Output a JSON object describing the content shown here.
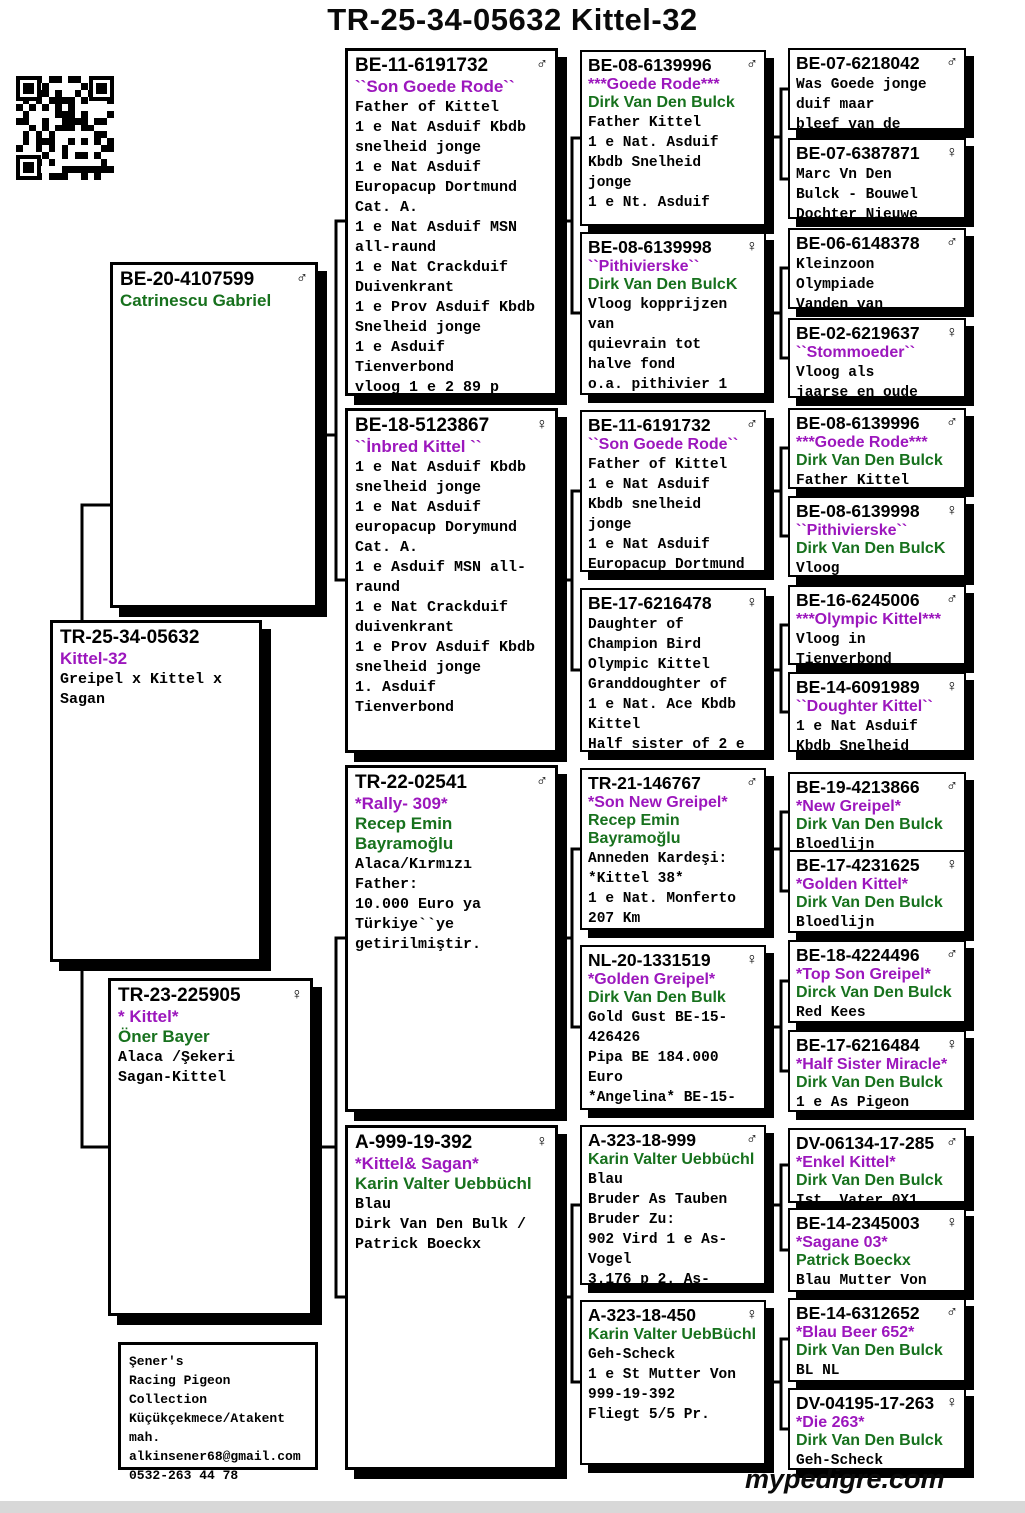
{
  "title": "TR-25-34-05632  Kittel-32",
  "footer": "mypedigre.com",
  "colors": {
    "nickname": "#9c17bd",
    "fancier": "#17711d",
    "ink": "#000000"
  },
  "gen1": {
    "sire": {
      "id": "BE-20-4107599",
      "sex": "♂",
      "fancier": "Catrinescu Gabriel"
    },
    "subject": {
      "id": "TR-25-34-05632",
      "nickname": "Kittel-32",
      "lines": "Greipel x Kittel x\nSagan"
    },
    "dam": {
      "id": "TR-23-225905",
      "sex": "♀",
      "nickname": "* Kittel*",
      "fancier": "Öner Bayer",
      "lines": "Alaca /Şekeri\nSagan-Kittel"
    }
  },
  "owner_card": {
    "lines": "Şener's\nRacing Pigeon\nCollection\nKüçükçekmece/Atakent mah.\nalkinsener68@gmail.com\n0532-263 44 78"
  },
  "gen2": [
    {
      "id": "BE-11-6191732",
      "sex": "♂",
      "nickname": "``Son Goede Rode``",
      "lines": "Father of Kittel\n1 e Nat Asduif Kbdb\nsnelheid jonge\n1 e Nat Asduif\nEuropacup Dortmund\nCat. A.\n1 e Nat Asduif MSN\nall-raund\n1 e Nat  Crackduif\nDuivenkrant\n1 e Prov Asduif Kbdb\nSnelheid jonge\n1 e Asduif\nTienverbond\nvloog 1 e  2 89 p"
    },
    {
      "id": "BE-18-5123867",
      "sex": "♀",
      "nickname": "``İnbred Kittel ``",
      "lines": "1 e Nat Asduif Kbdb\nsnelheid jonge\n1 e Nat Asduif\neuropacup Dorymund\nCat. A.\n1 e Asduif MSN all-\nraund\n1 e Nat  Crackduif\nduivenkrant\n1 e Prov Asduif Kbdb\nsnelheid jonge\n1. Asduif\nTienverbond"
    },
    {
      "id": "TR-22-02541",
      "sex": "♂",
      "nickname": "*Rally- 309*",
      "fancier": "Recep Emin Bayramoğlu",
      "lines": "Alaca/Kırmızı\nFather:\n10.000 Euro ya\nTürkiye``ye\ngetirilmiştir."
    },
    {
      "id": "A-999-19-392",
      "sex": "♀",
      "nickname": "*Kittel& Sagan*",
      "fancier": "Karin Valter Uebbüchl",
      "lines": "Blau\nDirk Van Den Bulk /\nPatrick Boeckx"
    }
  ],
  "gen3": [
    {
      "id": "BE-08-6139996",
      "sex": "♂",
      "nickname": "***Goede Rode***",
      "fancier": "Dirk Van Den Bulck",
      "lines": "Father Kittel\n1 e Nat. Asduif\nKbdb Snelheid\njonge\n1 e Nt. Asduif"
    },
    {
      "id": "BE-08-6139998",
      "sex": "♀",
      "nickname": "``Pithivierske``",
      "fancier": "Dirk Van Den BulcK",
      "lines": "Vloog kopprijzen\nvan\nquievrain tot\nhalve fond\no.a. pithivier 1"
    },
    {
      "id": "BE-11-6191732",
      "sex": "♂",
      "nickname": "``Son Goede Rode``",
      "lines": "Father of Kittel\n1 e Nat Asduif\nKbdb snelheid\njonge\n1 e Nat Asduif\nEuropacup Dortmund"
    },
    {
      "id": "BE-17-6216478",
      "sex": "♀",
      "lines": "Daughter of\nChampion Bird\nOlympic Kittel\nGranddoughter of\n1 e  Nat. Ace Kbdb\nKittel\nHalf sister of 2 e"
    },
    {
      "id": "TR-21-146767",
      "sex": "♂",
      "nickname": "*Son New Greipel*",
      "fancier": "Recep Emin\nBayramoğlu",
      "lines": "Anneden Kardeşi:\n*Kittel 38*\n1 e Nat. Monferto\n207 Km"
    },
    {
      "id": "NL-20-1331519",
      "sex": "♀",
      "nickname": "*Golden Greipel*",
      "fancier": "Dirk Van Den Bulk",
      "lines": "Gold Gust BE-15-\n426426\nPipa  BE 184.000\nEuro\n*Angelina*  BE-15-"
    },
    {
      "id": "A-323-18-999",
      "sex": "♂",
      "fancier": "Karin Valter Uebbüchl",
      "lines": "Blau\nBruder As Tauben\nBruder Zu:\n902 Vird 1 e As-\nVogel\n3.176 p  2. As-"
    },
    {
      "id": "A-323-18-450",
      "sex": "♀",
      "fancier": "Karin Valter UebBüchl",
      "lines": "Geh-Scheck\n1 e St Mutter Von\n999-19-392\nFliegt 5/5  Pr."
    }
  ],
  "gen4": [
    {
      "id": "BE-07-6218042",
      "sex": "♂",
      "lines": "Was Goede jonge\nduif maar\nbleef van de"
    },
    {
      "id": "BE-07-6387871",
      "sex": "♀",
      "lines": "Marc Vn Den\nBulck - Bouwel\nDochter Nieuwe"
    },
    {
      "id": "BE-06-6148378",
      "sex": "♂",
      "lines": "Kleinzoon\nOlympiade\nVanden van"
    },
    {
      "id": "BE-02-6219637",
      "sex": "♀",
      "nickname": "``Stommoeder``",
      "lines": "Vloog als\njaarse en oude"
    },
    {
      "id": "BE-08-6139996",
      "sex": "♂",
      "nickname": "***Goede Rode***",
      "fancier": "Dirk Van Den Bulck",
      "lines": "Father Kittel"
    },
    {
      "id": "BE-08-6139998",
      "sex": "♀",
      "nickname": "``Pithivierske``",
      "fancier": "Dirk Van Den BulcK",
      "lines": "Vloog"
    },
    {
      "id": "BE-16-6245006",
      "sex": "♂",
      "nickname": "***Olympic Kittel***",
      "lines": "Vloog in\nTienverbond"
    },
    {
      "id": "BE-14-6091989",
      "sex": "♀",
      "nickname": "``Doughter Kittel``",
      "lines": "1 e Nat Asduif\nKbdb Snelheid"
    },
    {
      "id": "BE-19-4213866",
      "sex": "♂",
      "nickname": "*New Greipel*",
      "fancier": "Dirk Van Den Bulck",
      "lines": "Bloedlijn"
    },
    {
      "id": "BE-17-4231625",
      "sex": "♀",
      "nickname": "*Golden Kittel*",
      "fancier": "Dirk Van Den Bulck",
      "lines": "Bloedlijn"
    },
    {
      "id": "BE-18-4224496",
      "sex": "♂",
      "nickname": "*Top Son Greipel*",
      "fancier": "Dirck Van Den Bulck",
      "lines": "Red Kees"
    },
    {
      "id": "BE-17-6216484",
      "sex": "♀",
      "nickname": "*Half Sister Miracle*",
      "fancier": "Dirk Van Den Bulck",
      "lines": "1 e As Pigeon"
    },
    {
      "id": "DV-06134-17-285",
      "sex": "♂",
      "nickname": "*Enkel Kittel*",
      "fancier": "Dirk Van Den Bulck",
      "lines": "Ist. Vater 0X1"
    },
    {
      "id": "BE-14-2345003",
      "sex": "♀",
      "nickname": "*Sagane 03*",
      "fancier": "Patrick Boeckx",
      "lines": "Blau Mutter Von"
    },
    {
      "id": "BE-14-6312652",
      "sex": "♂",
      "nickname": "*Blau Beer 652*",
      "fancier": "Dirk Van Den Bulck",
      "lines": "BL NL"
    },
    {
      "id": "DV-04195-17-263",
      "sex": "♀",
      "nickname": "*Die 263*",
      "fancier": "Dirk Van Den Bulck",
      "lines": "Geh-Scheck"
    }
  ]
}
